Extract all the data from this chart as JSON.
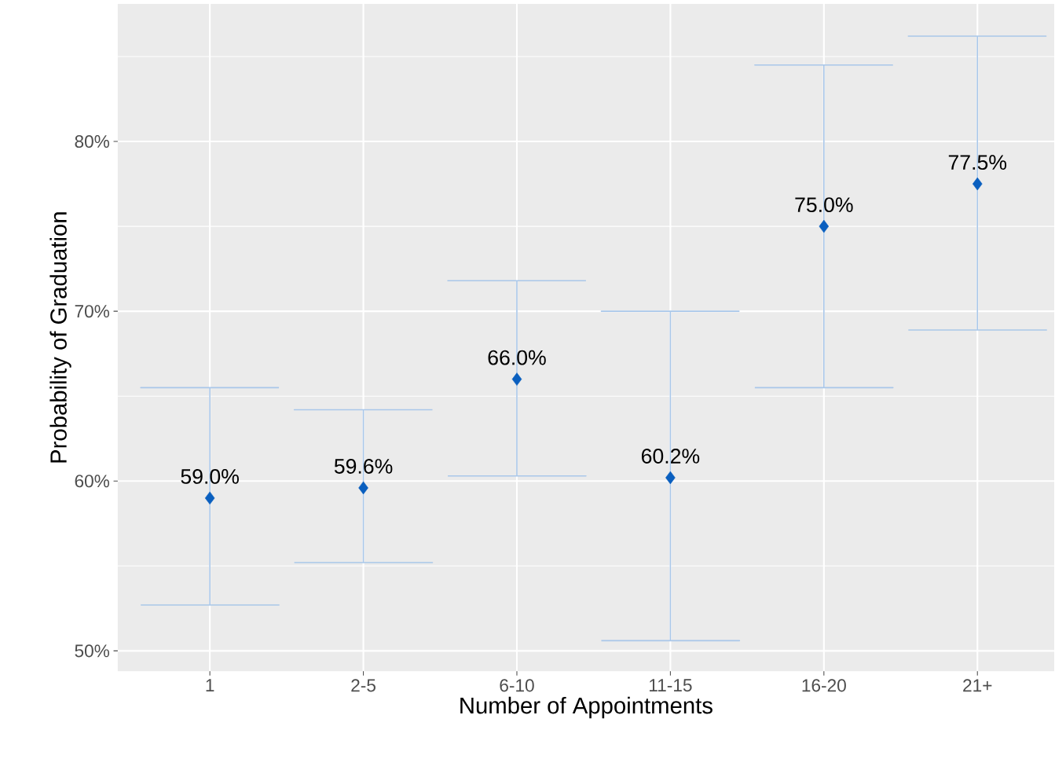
{
  "chart_data": {
    "type": "scatter",
    "xlabel": "Number of Appointments",
    "ylabel": "Probability of Graduation",
    "categories": [
      "1",
      "2-5",
      "6-10",
      "11-15",
      "16-20",
      "21+"
    ],
    "values": [
      59.0,
      59.6,
      66.0,
      60.2,
      75.0,
      77.5
    ],
    "value_labels": [
      "59.0%",
      "59.6%",
      "66.0%",
      "60.2%",
      "75.0%",
      "77.5%"
    ],
    "errors": [
      [
        52.7,
        65.5
      ],
      [
        55.2,
        64.2
      ],
      [
        60.3,
        71.8
      ],
      [
        50.6,
        70.0
      ],
      [
        65.5,
        84.5
      ],
      [
        68.9,
        86.2
      ]
    ],
    "color": "#0a5fbf",
    "marker": "diamond",
    "ylim": [
      48.8,
      88.1
    ],
    "yticks": [
      {
        "value": 50,
        "label": "50%"
      },
      {
        "value": 55,
        "label": null
      },
      {
        "value": 60,
        "label": "60%"
      },
      {
        "value": 65,
        "label": null
      },
      {
        "value": 70,
        "label": "70%"
      },
      {
        "value": 75,
        "label": null
      },
      {
        "value": 80,
        "label": "80%"
      },
      {
        "value": 85,
        "label": null
      }
    ],
    "grid": true
  }
}
